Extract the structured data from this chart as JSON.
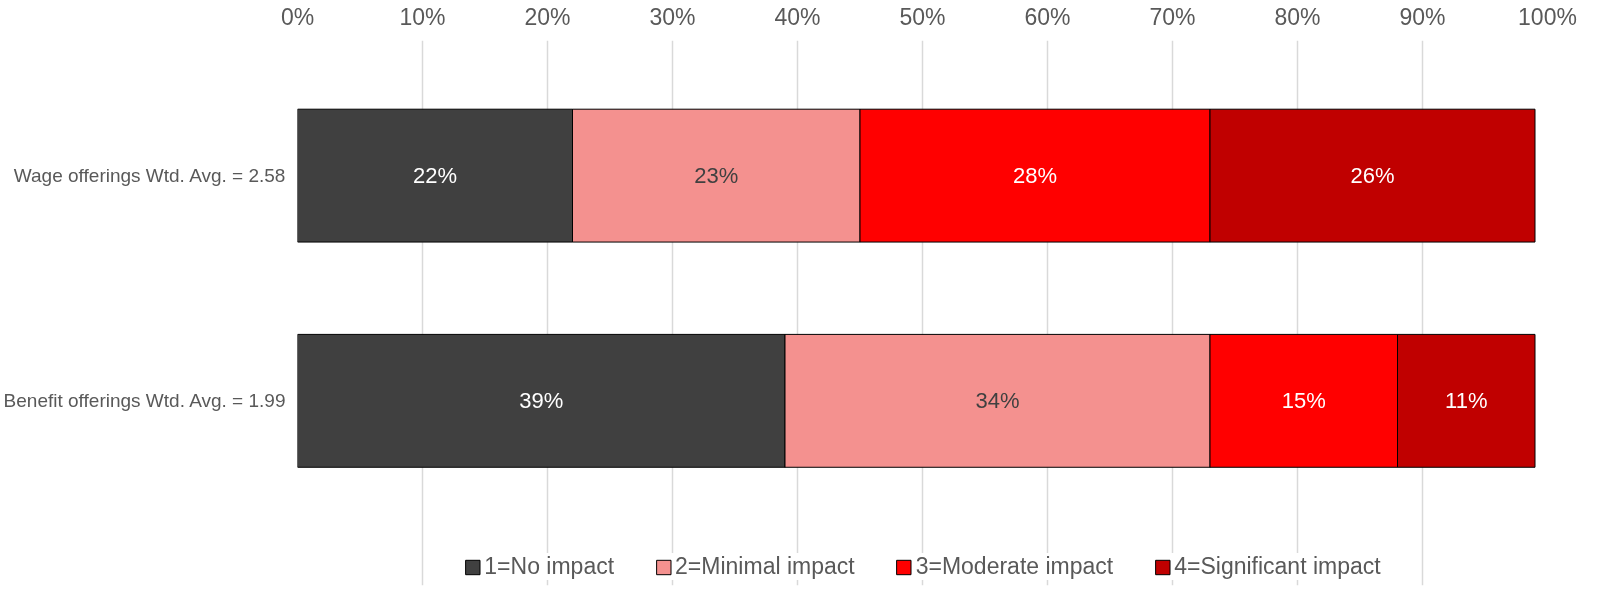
{
  "chart_data": {
    "type": "bar",
    "orientation": "horizontal",
    "stacked": true,
    "categories": [
      "Wage offerings Wtd. Avg. = 2.58",
      "Benefit offerings Wtd. Avg. = 1.99"
    ],
    "series": [
      {
        "name": "1=No impact",
        "color": "#404040",
        "values": [
          22,
          39
        ]
      },
      {
        "name": "2=Minimal impact",
        "color": "#f4918f",
        "values": [
          23,
          34
        ]
      },
      {
        "name": "3=Moderate impact",
        "color": "#ff0000",
        "values": [
          28,
          15
        ]
      },
      {
        "name": "4=Significant impact",
        "color": "#c00000",
        "values": [
          26,
          11
        ]
      }
    ],
    "xlim": [
      0,
      100
    ],
    "xticks": [
      {
        "value": 0,
        "label": "0%"
      },
      {
        "value": 10,
        "label": "10%"
      },
      {
        "value": 20,
        "label": "20%"
      },
      {
        "value": 30,
        "label": "30%"
      },
      {
        "value": 40,
        "label": "40%"
      },
      {
        "value": 50,
        "label": "50%"
      },
      {
        "value": 60,
        "label": "60%"
      },
      {
        "value": 70,
        "label": "70%"
      },
      {
        "value": 80,
        "label": "80%"
      },
      {
        "value": 90,
        "label": "90%"
      },
      {
        "value": 100,
        "label": "100%"
      }
    ],
    "value_labels": [
      [
        "22%",
        "39%"
      ],
      [
        "23%",
        "34%"
      ],
      [
        "28%",
        "15%"
      ],
      [
        "26%",
        "11%"
      ]
    ],
    "grid": "x",
    "legend": "bottom"
  }
}
